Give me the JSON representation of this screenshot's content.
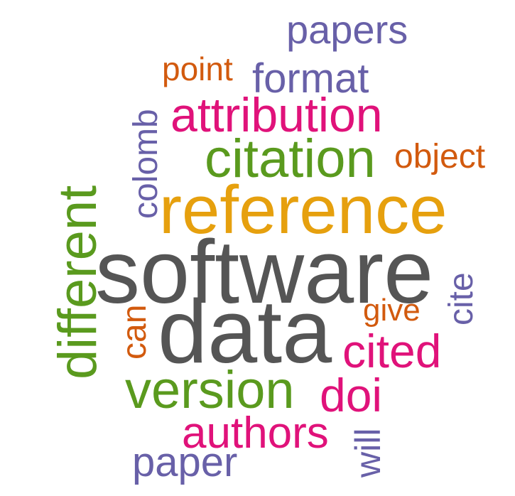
{
  "palette": {
    "gray": "#555555",
    "orange": "#E6A00E",
    "green": "#5A9A1E",
    "magenta": "#E0127A",
    "purple": "#6860A8",
    "rust": "#D25A0E"
  },
  "words": {
    "software": "software",
    "data": "data",
    "reference": "reference",
    "citation": "citation",
    "attribution": "attribution",
    "different": "different",
    "version": "version",
    "cited": "cited",
    "authors": "authors",
    "doi": "doi",
    "papers": "papers",
    "format": "format",
    "point": "point",
    "colomb": "colomb",
    "object": "object",
    "cite": "cite",
    "give": "give",
    "can": "can",
    "will": "will",
    "paper": "paper"
  }
}
